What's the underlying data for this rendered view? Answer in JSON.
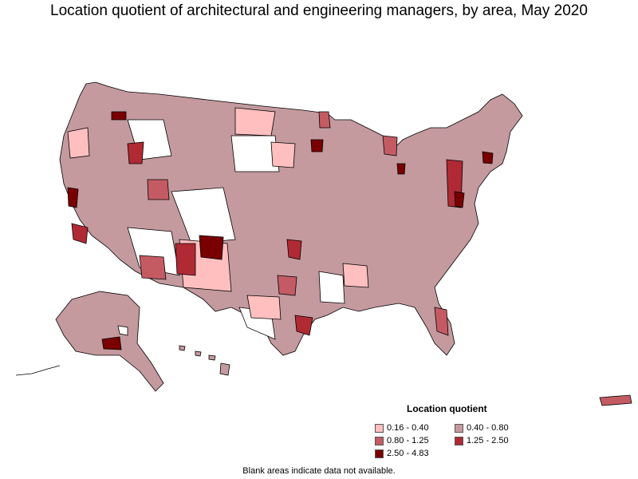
{
  "title": "Location quotient of architectural and engineering managers, by area, May 2020",
  "legend": {
    "title": "Location quotient",
    "items": [
      {
        "label": "0.16 - 0.40",
        "color": "#ffbfbf"
      },
      {
        "label": "0.40 - 0.80",
        "color": "#c49a9f"
      },
      {
        "label": "0.80 - 1.25",
        "color": "#c45b63"
      },
      {
        "label": "1.25 - 2.50",
        "color": "#b02a33"
      },
      {
        "label": "2.50 - 4.83",
        "color": "#7a0000"
      }
    ]
  },
  "footnote": "Blank areas indicate data not available.",
  "colors": {
    "no_data": "#ffffff",
    "border": "#000000"
  }
}
